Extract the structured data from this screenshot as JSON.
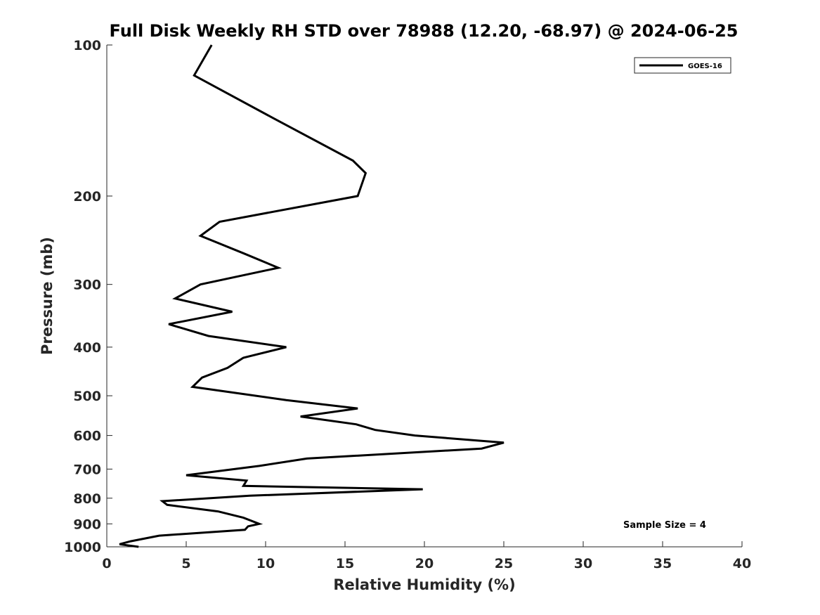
{
  "chart_data": {
    "type": "line",
    "title": "Full Disk Weekly RH STD over 78988 (12.20, -68.97) @ 2024-06-25",
    "xlabel": "Relative Humidity (%)",
    "ylabel": "Pressure (mb)",
    "xlim": [
      0,
      40
    ],
    "ylim": [
      100,
      1000
    ],
    "y_scale": "log",
    "y_reversed": true,
    "x_ticks": [
      0,
      5,
      10,
      15,
      20,
      25,
      30,
      35,
      40
    ],
    "y_ticks": [
      100,
      200,
      300,
      400,
      500,
      600,
      700,
      800,
      900,
      1000
    ],
    "grid": false,
    "legend_position": "top-right",
    "annotation": "Sample Size = 4",
    "series": [
      {
        "name": "GOES-16",
        "color": "#000000",
        "points": [
          [
            6.6,
            100
          ],
          [
            5.5,
            115
          ],
          [
            10.5,
            140
          ],
          [
            15.5,
            170
          ],
          [
            16.3,
            180
          ],
          [
            15.8,
            200
          ],
          [
            7.1,
            225
          ],
          [
            5.9,
            240
          ],
          [
            8.6,
            260
          ],
          [
            10.8,
            278
          ],
          [
            5.9,
            300
          ],
          [
            4.3,
            320
          ],
          [
            7.9,
            340
          ],
          [
            3.9,
            360
          ],
          [
            6.4,
            380
          ],
          [
            11.3,
            400
          ],
          [
            8.6,
            420
          ],
          [
            7.6,
            440
          ],
          [
            6.0,
            460
          ],
          [
            5.4,
            480
          ],
          [
            11.3,
            510
          ],
          [
            15.8,
            530
          ],
          [
            12.2,
            550
          ],
          [
            15.7,
            570
          ],
          [
            16.9,
            585
          ],
          [
            19.4,
            600
          ],
          [
            25.0,
            620
          ],
          [
            23.6,
            637
          ],
          [
            12.6,
            667
          ],
          [
            9.6,
            690
          ],
          [
            5.0,
            720
          ],
          [
            8.8,
            738
          ],
          [
            8.6,
            756
          ],
          [
            19.9,
            768
          ],
          [
            9.0,
            791
          ],
          [
            3.5,
            811
          ],
          [
            3.8,
            825
          ],
          [
            7.0,
            850
          ],
          [
            8.6,
            875
          ],
          [
            9.6,
            900
          ],
          [
            8.9,
            910
          ],
          [
            8.7,
            925
          ],
          [
            3.3,
            950
          ],
          [
            1.5,
            975
          ],
          [
            0.8,
            988
          ],
          [
            2.0,
            1000
          ]
        ]
      }
    ]
  }
}
